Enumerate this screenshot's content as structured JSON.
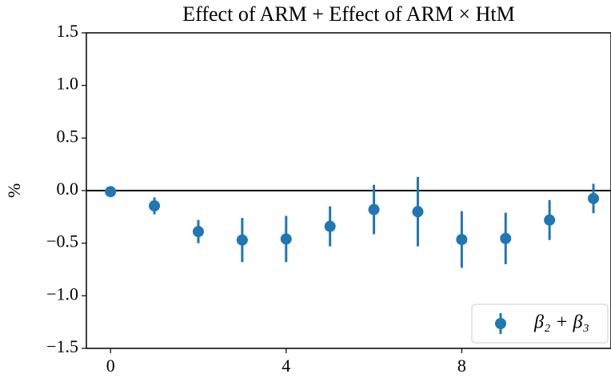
{
  "chart_data": {
    "type": "errorbar",
    "title": "Effect of ARM + Effect of ARM × HtM",
    "ylabel": "%",
    "series": [
      {
        "name": "β₂ + β₃",
        "color": "#1f77b4",
        "x": [
          0,
          1,
          2,
          3,
          4,
          5,
          6,
          7,
          8,
          9,
          10,
          11
        ],
        "values": [
          -0.01,
          -0.145,
          -0.39,
          -0.47,
          -0.46,
          -0.34,
          -0.18,
          -0.2,
          -0.465,
          -0.455,
          -0.28,
          -0.075
        ],
        "errors": [
          0.0,
          0.08,
          0.11,
          0.21,
          0.22,
          0.19,
          0.235,
          0.33,
          0.27,
          0.245,
          0.19,
          0.14
        ]
      }
    ],
    "xlim": [
      -0.55,
      11.4
    ],
    "xticks": [
      0,
      4,
      8
    ],
    "ylim": [
      -1.5,
      1.5
    ],
    "yticks": [
      {
        "value": -1.5,
        "label": "−1.5"
      },
      {
        "value": -1.0,
        "label": "−1.0"
      },
      {
        "value": -0.5,
        "label": "−0.5"
      },
      {
        "value": 0,
        "label": "0.0"
      },
      0.5,
      {
        "value": 1.0,
        "label": "1.0"
      },
      1.5
    ],
    "hline": 0,
    "legend": "lower right"
  }
}
